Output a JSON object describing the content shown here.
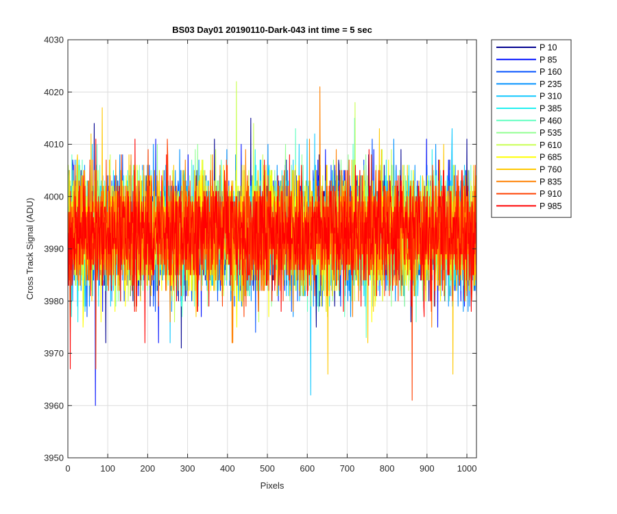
{
  "chart_data": {
    "type": "line",
    "title": "BS03 Day01 20190110-Dark-043 int time = 5 sec",
    "xlabel": "Pixels",
    "ylabel": "Cross Track Signal (ADU)",
    "xlim": [
      0,
      1024
    ],
    "ylim": [
      3950,
      4030
    ],
    "x_ticks": [
      0,
      100,
      200,
      300,
      400,
      500,
      600,
      700,
      800,
      900,
      1000
    ],
    "y_ticks": [
      3950,
      3960,
      3970,
      3980,
      3990,
      4000,
      4010,
      4020,
      4030
    ],
    "grid": true,
    "legend_position": "outside-top-right",
    "noise": {
      "mean": 3993,
      "sigma": 5.5,
      "points_per_series": 1024
    },
    "series": [
      {
        "name": "P 10",
        "color": "#00008f"
      },
      {
        "name": "P 85",
        "color": "#0010ff"
      },
      {
        "name": "P 160",
        "color": "#0050ff"
      },
      {
        "name": "P 235",
        "color": "#0090ff"
      },
      {
        "name": "P 310",
        "color": "#10c8ff"
      },
      {
        "name": "P 385",
        "color": "#20f0f0"
      },
      {
        "name": "P 460",
        "color": "#60ffc0"
      },
      {
        "name": "P 535",
        "color": "#90ff90"
      },
      {
        "name": "P 610",
        "color": "#c8ff50"
      },
      {
        "name": "P 685",
        "color": "#ffff00"
      },
      {
        "name": "P 760",
        "color": "#ffc800"
      },
      {
        "name": "P 835",
        "color": "#ff8000"
      },
      {
        "name": "P 910",
        "color": "#ff4000"
      },
      {
        "name": "P 985",
        "color": "#ff0000"
      }
    ]
  }
}
